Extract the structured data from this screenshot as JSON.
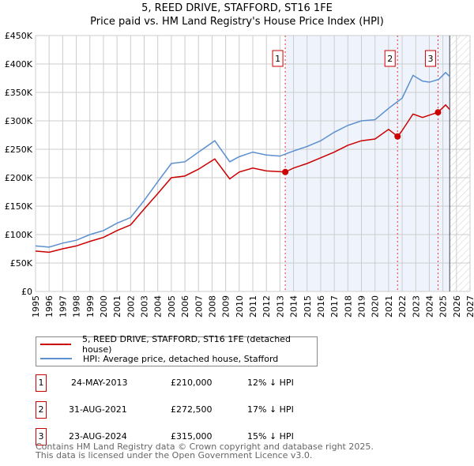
{
  "chart_data": {
    "type": "line",
    "title": "5, REED DRIVE, STAFFORD, ST16 1FE",
    "subtitle": "Price paid vs. HM Land Registry's House Price Index (HPI)",
    "xlim": [
      1995,
      2027
    ],
    "ylim": [
      0,
      450000
    ],
    "x_ticks": [
      "1995",
      "1996",
      "1997",
      "1998",
      "1999",
      "2000",
      "2001",
      "2002",
      "2003",
      "2004",
      "2005",
      "2006",
      "2007",
      "2008",
      "2009",
      "2010",
      "2011",
      "2012",
      "2013",
      "2014",
      "2015",
      "2016",
      "2017",
      "2018",
      "2019",
      "2020",
      "2021",
      "2022",
      "2023",
      "2024",
      "2025",
      "2026",
      "2027"
    ],
    "y_ticks": [
      {
        "v": 0,
        "l": "£0"
      },
      {
        "v": 50000,
        "l": "£50K"
      },
      {
        "v": 100000,
        "l": "£100K"
      },
      {
        "v": 150000,
        "l": "£150K"
      },
      {
        "v": 200000,
        "l": "£200K"
      },
      {
        "v": 250000,
        "l": "£250K"
      },
      {
        "v": 300000,
        "l": "£300K"
      },
      {
        "v": 350000,
        "l": "£350K"
      },
      {
        "v": 400000,
        "l": "£400K"
      },
      {
        "v": 450000,
        "l": "£450K"
      }
    ],
    "grid": true,
    "shaded_range": [
      2013.4,
      2025.5
    ],
    "forecast_hatch": [
      2025.5,
      2027
    ],
    "series": [
      {
        "name": "5, REED DRIVE, STAFFORD, ST16 1FE (detached house)",
        "color": "#cc0000",
        "x": [
          1995,
          1996,
          1997,
          1998,
          1999,
          2000,
          2001,
          2002,
          2003,
          2004,
          2005,
          2006,
          2007,
          2008.2,
          2009.3,
          2010,
          2011,
          2012,
          2013.4,
          2014,
          2015,
          2016,
          2017,
          2018,
          2019,
          2020,
          2021,
          2021.67,
          2022,
          2022.8,
          2023.5,
          2024,
          2024.64,
          2025.2,
          2025.5
        ],
        "y": [
          71000,
          69000,
          75000,
          80000,
          88000,
          95000,
          107000,
          117000,
          145000,
          172000,
          200000,
          203000,
          215000,
          233000,
          198000,
          210000,
          217000,
          212000,
          210000,
          217000,
          225000,
          235000,
          245000,
          257000,
          265000,
          268000,
          285000,
          272500,
          283000,
          312000,
          306000,
          310000,
          315000,
          328000,
          320000
        ]
      },
      {
        "name": "HPI: Average price, detached house, Stafford",
        "color": "#5b8fd0",
        "x": [
          1995,
          1996,
          1997,
          1998,
          1999,
          2000,
          2001,
          2002,
          2003,
          2004,
          2005,
          2006,
          2007,
          2008.2,
          2009.3,
          2010,
          2011,
          2012,
          2013,
          2014,
          2015,
          2016,
          2017,
          2018,
          2019,
          2020,
          2021,
          2022,
          2022.8,
          2023.5,
          2024,
          2024.7,
          2025.2,
          2025.5
        ],
        "y": [
          80000,
          78000,
          85000,
          90000,
          100000,
          107000,
          120000,
          130000,
          160000,
          193000,
          225000,
          228000,
          245000,
          265000,
          228000,
          237000,
          245000,
          240000,
          238000,
          247000,
          255000,
          265000,
          280000,
          292000,
          300000,
          302000,
          322000,
          340000,
          380000,
          370000,
          368000,
          373000,
          385000,
          378000
        ]
      }
    ],
    "sales": [
      {
        "n": "1",
        "x": 2013.39,
        "y": 210000,
        "date": "24-MAY-2013",
        "price": "£210,000",
        "delta": "12% ↓ HPI"
      },
      {
        "n": "2",
        "x": 2021.66,
        "y": 272500,
        "date": "31-AUG-2021",
        "price": "£272,500",
        "delta": "17% ↓ HPI"
      },
      {
        "n": "3",
        "x": 2024.64,
        "y": 315000,
        "date": "23-AUG-2024",
        "price": "£315,000",
        "delta": "15% ↓ HPI"
      }
    ]
  },
  "footer": {
    "line1": "Contains HM Land Registry data © Crown copyright and database right 2025.",
    "line2": "This data is licensed under the Open Government Licence v3.0."
  }
}
